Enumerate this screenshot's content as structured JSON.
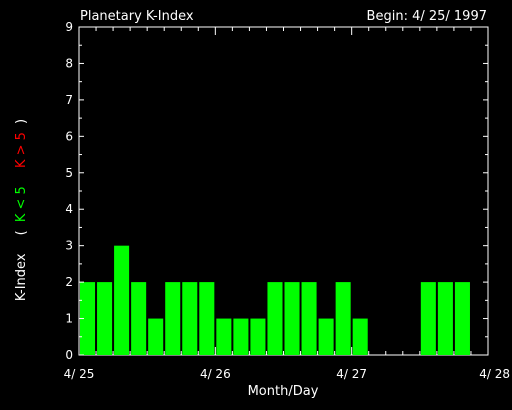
{
  "chart_data": {
    "type": "bar",
    "title": "Planetary K-Index",
    "begin_label": "Begin: 4/ 25/ 1997",
    "xlabel": "Month/Day",
    "ylabel_parts": {
      "main": "K-Index",
      "open": "(",
      "green": "K < 5",
      "red": "K > 5",
      "close": ")"
    },
    "ylim": [
      0,
      9
    ],
    "y_ticks": [
      "0",
      "1",
      "2",
      "3",
      "4",
      "5",
      "6",
      "7",
      "8",
      "9"
    ],
    "x_tick_labels": [
      "4/ 25",
      "4/ 26",
      "4/ 27",
      "4/ 28"
    ],
    "intervals_per_day": 8,
    "days": 3,
    "values": [
      2,
      2,
      3,
      2,
      1,
      2,
      2,
      2,
      1,
      1,
      1,
      2,
      2,
      2,
      1,
      2,
      1,
      null,
      null,
      null,
      2,
      2,
      2,
      null
    ],
    "colors": {
      "background": "#000000",
      "axes": "#ffffff",
      "bar_low": "#00ff00",
      "bar_high": "#ff0000",
      "label_green": "#00ff00",
      "label_red": "#ff0000"
    },
    "grid": false,
    "legend": "none"
  }
}
